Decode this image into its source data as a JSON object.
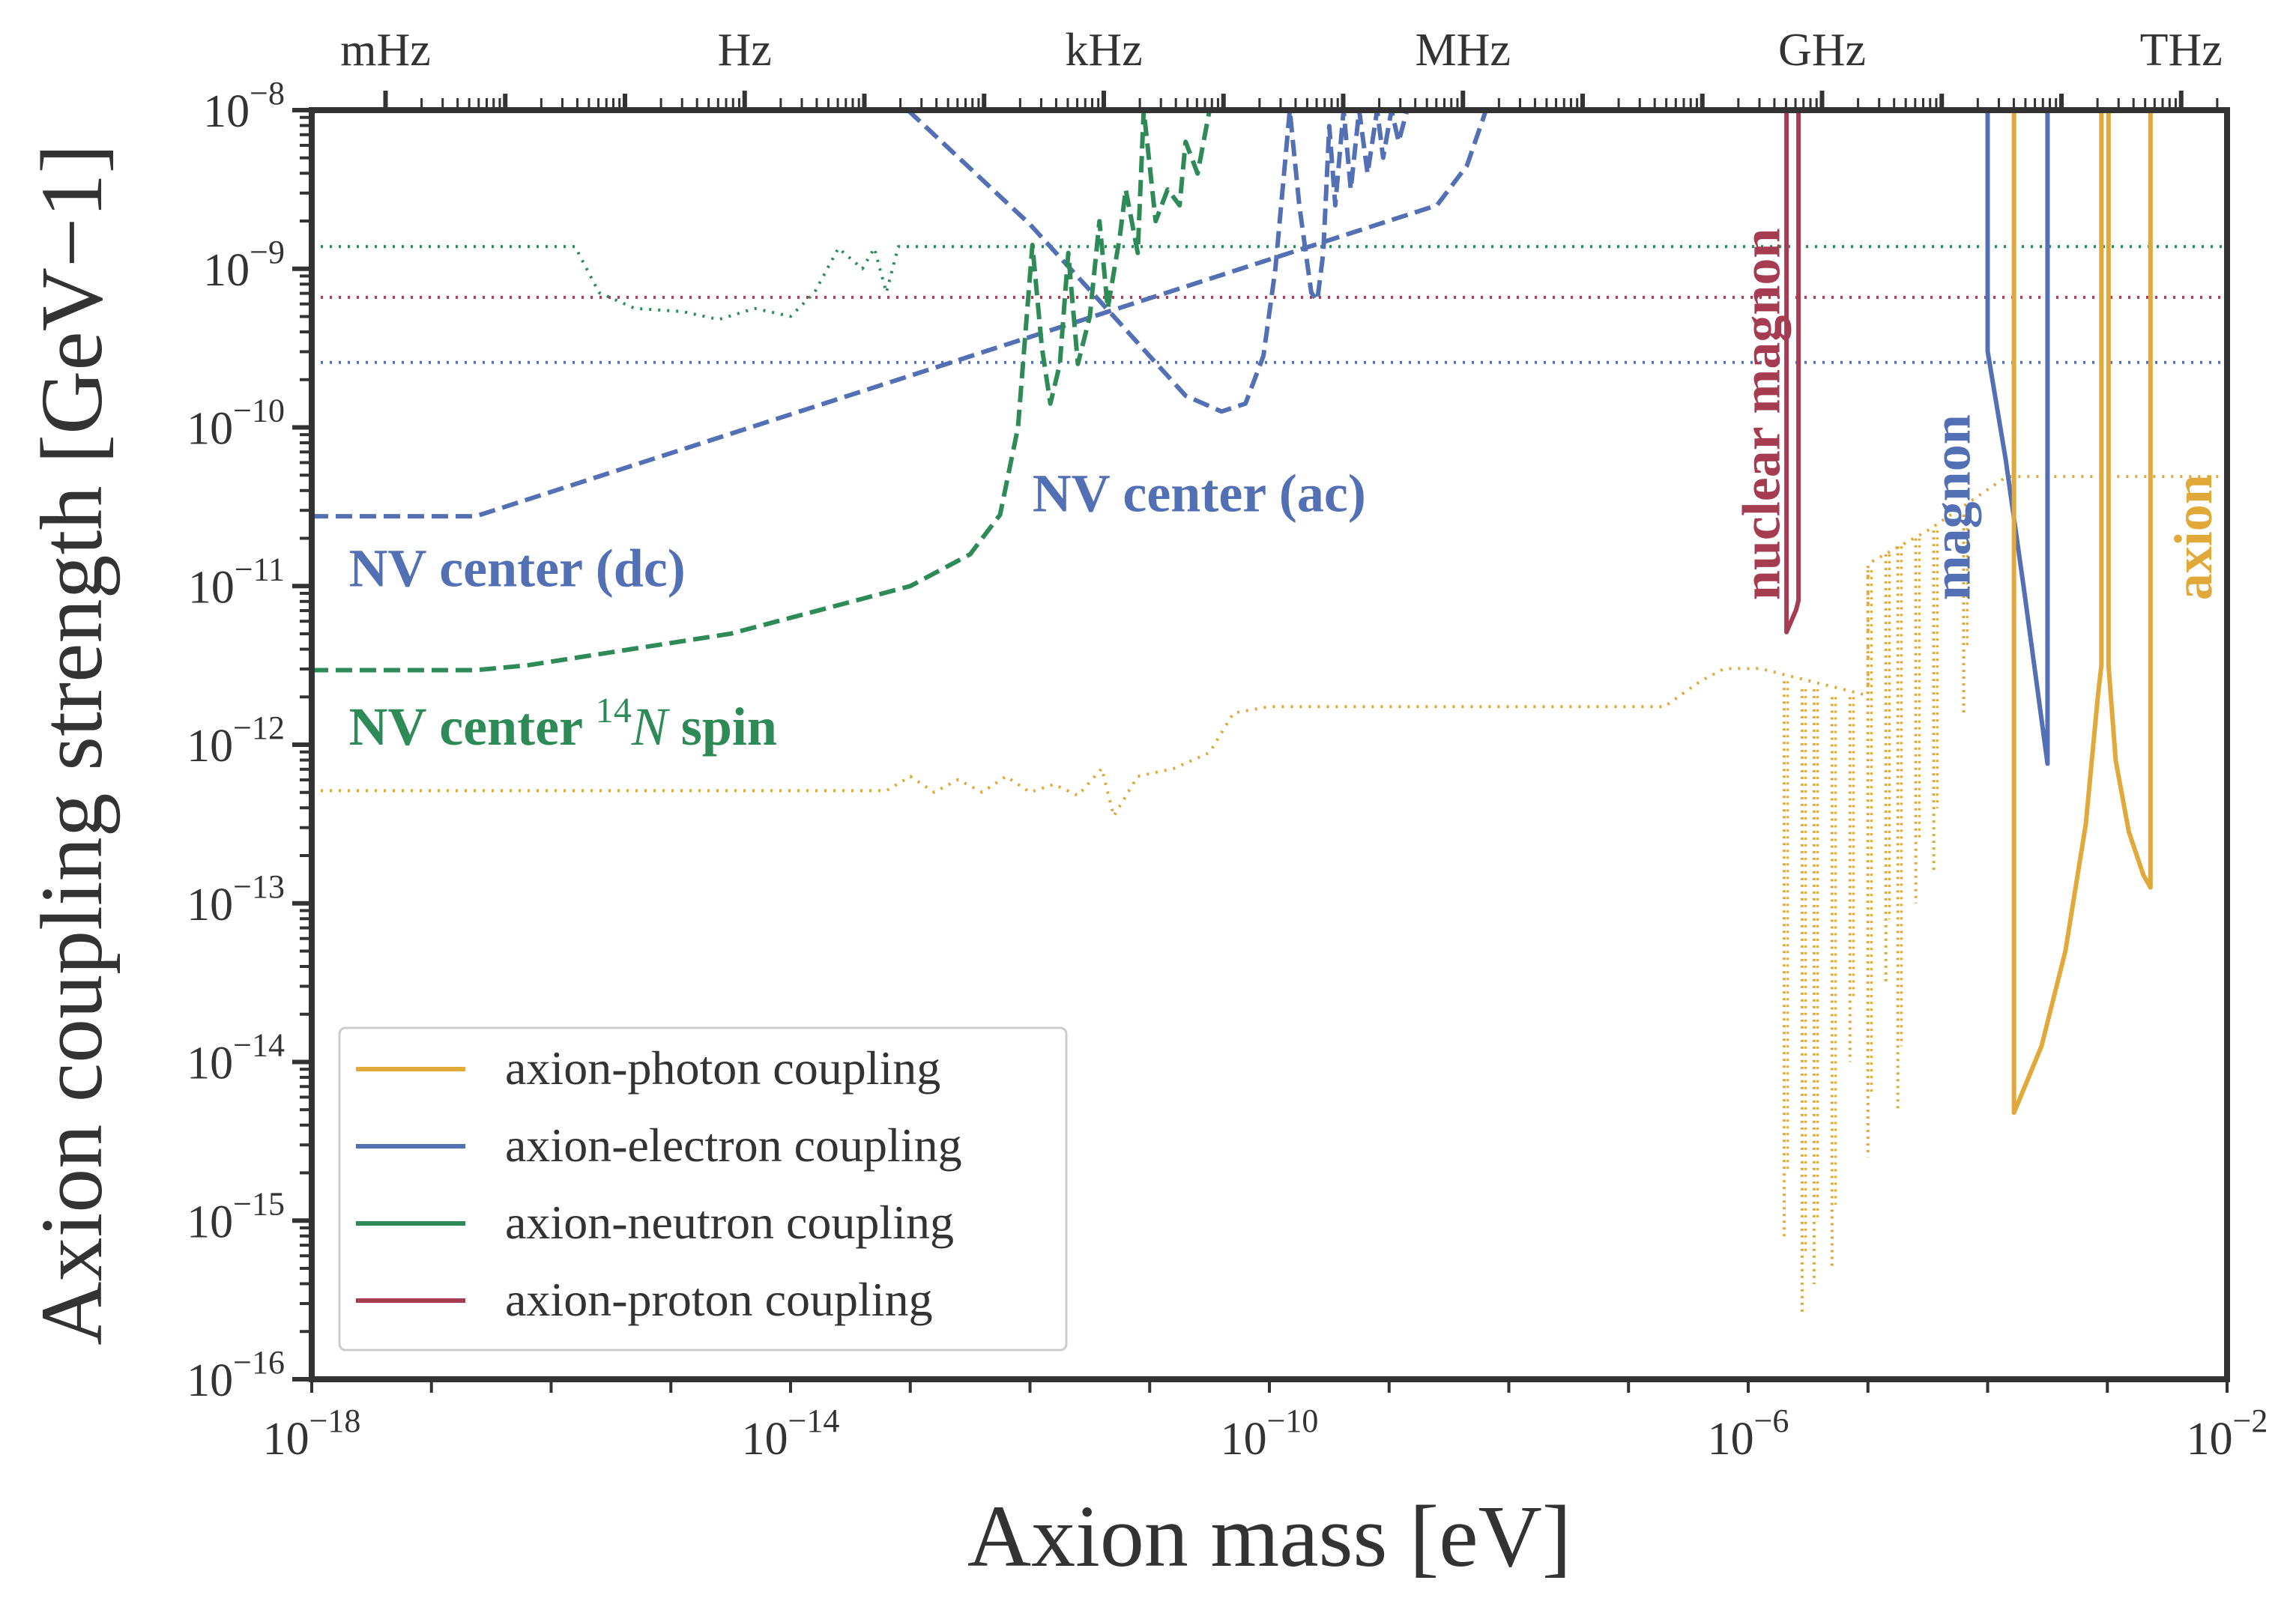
{
  "chart_data": {
    "type": "line",
    "xlabel": "Axion mass [eV]",
    "ylabel": "Axion coupling strength [GeV−1]",
    "xscale": "log",
    "yscale": "log",
    "xlim_log10": [
      -18,
      -2
    ],
    "ylim_log10": [
      -16,
      -8
    ],
    "x_tick_labels": [
      {
        "exp": -18,
        "label": "10",
        "sup": "−18"
      },
      {
        "exp": -14,
        "label": "10",
        "sup": "−14"
      },
      {
        "exp": -10,
        "label": "10",
        "sup": "−10"
      },
      {
        "exp": -6,
        "label": "10",
        "sup": "−6"
      },
      {
        "exp": -2,
        "label": "10",
        "sup": "−2"
      }
    ],
    "y_tick_labels": [
      {
        "exp": -8,
        "label": "10",
        "sup": "−8"
      },
      {
        "exp": -9,
        "label": "10",
        "sup": "−9"
      },
      {
        "exp": -10,
        "label": "10",
        "sup": "−10"
      },
      {
        "exp": -11,
        "label": "10",
        "sup": "−11"
      },
      {
        "exp": -12,
        "label": "10",
        "sup": "−12"
      },
      {
        "exp": -13,
        "label": "10",
        "sup": "−13"
      },
      {
        "exp": -14,
        "label": "10",
        "sup": "−14"
      },
      {
        "exp": -15,
        "label": "10",
        "sup": "−15"
      },
      {
        "exp": -16,
        "label": "10",
        "sup": "−16"
      }
    ],
    "top_axis": {
      "unit": "frequency",
      "labels": [
        {
          "label": "mHz",
          "hz": 0.001
        },
        {
          "label": "Hz",
          "hz": 1
        },
        {
          "label": "kHz",
          "hz": 1000
        },
        {
          "label": "MHz",
          "hz": 1000000
        },
        {
          "label": "GHz",
          "hz": 1000000000
        },
        {
          "label": "THz",
          "hz": 1000000000000
        }
      ],
      "ev_per_hz": 4.136e-15
    },
    "colors": {
      "photon": "#e0a93a",
      "electron": "#5470b5",
      "neutron": "#2e8b57",
      "proton": "#a63c51"
    },
    "legend": {
      "placement": "lower-left",
      "entries": [
        {
          "label": "axion-photon coupling",
          "color": "photon"
        },
        {
          "label": "axion-electron coupling",
          "color": "electron"
        },
        {
          "label": "axion-neutron coupling",
          "color": "neutron"
        },
        {
          "label": "axion-proton coupling",
          "color": "proton"
        }
      ]
    },
    "series": [
      {
        "name": "electron existing limit",
        "color": "electron",
        "style": "dotted",
        "points": [
          [
            -18,
            -9.59
          ],
          [
            -2,
            -9.59
          ]
        ]
      },
      {
        "name": "proton existing limit",
        "color": "proton",
        "style": "dotted",
        "points": [
          [
            -18,
            -9.18
          ],
          [
            -2,
            -9.18
          ]
        ]
      },
      {
        "name": "neutron existing limit",
        "color": "neutron",
        "style": "dotted",
        "points": [
          [
            -18,
            -8.86
          ],
          [
            -15.8,
            -8.86
          ],
          [
            -15.6,
            -9.15
          ],
          [
            -15.3,
            -9.25
          ],
          [
            -14.9,
            -9.27
          ],
          [
            -14.6,
            -9.32
          ],
          [
            -14.3,
            -9.25
          ],
          [
            -14.0,
            -9.3
          ],
          [
            -13.8,
            -9.15
          ],
          [
            -13.6,
            -8.87
          ],
          [
            -13.4,
            -9.0
          ],
          [
            -13.3,
            -8.87
          ],
          [
            -13.2,
            -9.15
          ],
          [
            -13.1,
            -8.86
          ],
          [
            -2,
            -8.86
          ]
        ]
      },
      {
        "name": "photon existing limit",
        "color": "photon",
        "style": "dotted",
        "points": [
          [
            -18,
            -12.29
          ],
          [
            -13.2,
            -12.29
          ],
          [
            -13.0,
            -12.2
          ],
          [
            -12.8,
            -12.3
          ],
          [
            -12.6,
            -12.22
          ],
          [
            -12.4,
            -12.3
          ],
          [
            -12.2,
            -12.2
          ],
          [
            -12.0,
            -12.3
          ],
          [
            -11.8,
            -12.25
          ],
          [
            -11.6,
            -12.32
          ],
          [
            -11.4,
            -12.15
          ],
          [
            -11.3,
            -12.45
          ],
          [
            -11.1,
            -12.2
          ],
          [
            -10.8,
            -12.15
          ],
          [
            -10.5,
            -12.05
          ],
          [
            -10.3,
            -11.8
          ],
          [
            -10.0,
            -11.76
          ],
          [
            -6.7,
            -11.76
          ],
          [
            -6.4,
            -11.6
          ],
          [
            -6.2,
            -11.52
          ],
          [
            -5.9,
            -11.52
          ],
          [
            -5.0,
            -11.69
          ],
          [
            -5.0,
            -10.86
          ],
          [
            -4.5,
            -10.65
          ],
          [
            -3.84,
            -10.31
          ],
          [
            -2,
            -10.31
          ]
        ],
        "spikes": [
          [
            -5.7,
            -11.6,
            -15.1
          ],
          [
            -5.55,
            -11.65,
            -15.6
          ],
          [
            -5.45,
            -11.65,
            -15.4
          ],
          [
            -5.3,
            -11.7,
            -15.3
          ],
          [
            -5.15,
            -11.7,
            -14.0
          ],
          [
            -5.0,
            -10.9,
            -14.6
          ],
          [
            -4.85,
            -10.8,
            -13.5
          ],
          [
            -4.75,
            -10.75,
            -14.3
          ],
          [
            -4.6,
            -10.7,
            -13.0
          ],
          [
            -4.45,
            -10.65,
            -12.8
          ],
          [
            -4.2,
            -10.55,
            -11.8
          ]
        ]
      },
      {
        "name": "NV center (dc)",
        "color": "electron",
        "style": "dashed",
        "points": [
          [
            -18,
            -10.56
          ],
          [
            -16.63,
            -10.56
          ],
          [
            -8.6,
            -8.6
          ],
          [
            -8.35,
            -8.35
          ],
          [
            -8.19,
            -8
          ]
        ]
      },
      {
        "name": "NV center (ac)",
        "color": "electron",
        "style": "dashed",
        "points": [
          [
            -13.02,
            -8
          ],
          [
            -12.0,
            -8.72
          ],
          [
            -11.3,
            -9.3
          ],
          [
            -10.7,
            -9.8
          ],
          [
            -10.4,
            -9.9
          ],
          [
            -10.2,
            -9.85
          ],
          [
            -10.05,
            -9.55
          ],
          [
            -9.95,
            -9.0
          ],
          [
            -9.83,
            -8
          ],
          [
            -9.75,
            -8.6
          ],
          [
            -9.65,
            -9.15
          ],
          [
            -9.6,
            -9.2
          ],
          [
            -9.55,
            -8.9
          ],
          [
            -9.5,
            -8.1
          ],
          [
            -9.45,
            -8.6
          ],
          [
            -9.38,
            -8.0
          ],
          [
            -9.32,
            -8.5
          ],
          [
            -9.25,
            -8.0
          ],
          [
            -9.18,
            -8.4
          ],
          [
            -9.1,
            -8.0
          ],
          [
            -9.05,
            -8.3
          ],
          [
            -8.98,
            -8.0
          ],
          [
            -8.92,
            -8.2
          ],
          [
            -8.85,
            -8.0
          ]
        ]
      },
      {
        "name": "NV center 14N spin",
        "color": "neutron",
        "style": "dashed",
        "points": [
          [
            -18,
            -11.53
          ],
          [
            -16.63,
            -11.53
          ],
          [
            -16.2,
            -11.5
          ],
          [
            -14.5,
            -11.3
          ],
          [
            -13.0,
            -11.0
          ],
          [
            -12.5,
            -10.8
          ],
          [
            -12.25,
            -10.55
          ],
          [
            -12.1,
            -10.0
          ],
          [
            -11.98,
            -8.85
          ],
          [
            -11.9,
            -9.5
          ],
          [
            -11.83,
            -9.85
          ],
          [
            -11.75,
            -9.6
          ],
          [
            -11.68,
            -8.9
          ],
          [
            -11.6,
            -9.6
          ],
          [
            -11.5,
            -9.3
          ],
          [
            -11.42,
            -8.7
          ],
          [
            -11.35,
            -9.25
          ],
          [
            -11.25,
            -8.8
          ],
          [
            -11.2,
            -8.5
          ],
          [
            -11.1,
            -8.9
          ],
          [
            -11.05,
            -8.0
          ],
          [
            -10.95,
            -8.7
          ],
          [
            -10.85,
            -8.5
          ],
          [
            -10.75,
            -8.6
          ],
          [
            -10.7,
            -8.2
          ],
          [
            -10.6,
            -8.4
          ],
          [
            -10.5,
            -8.0
          ]
        ]
      },
      {
        "name": "nuclear magnon",
        "color": "proton",
        "style": "solid",
        "points": [
          [
            -5.68,
            -8
          ],
          [
            -5.68,
            -11.29
          ],
          [
            -5.6,
            -11.15
          ],
          [
            -5.58,
            -11.09
          ],
          [
            -5.58,
            -8
          ]
        ]
      },
      {
        "name": "magnon",
        "color": "electron",
        "style": "solid",
        "points": [
          [
            -4.0,
            -8
          ],
          [
            -4.0,
            -9.52
          ],
          [
            -3.85,
            -10.2
          ],
          [
            -3.7,
            -11.0
          ],
          [
            -3.5,
            -12.12
          ],
          [
            -3.5,
            -8
          ]
        ]
      },
      {
        "name": "axion (a)",
        "color": "photon",
        "style": "solid",
        "points": [
          [
            -3.78,
            -8
          ],
          [
            -3.78,
            -14.32
          ],
          [
            -3.55,
            -13.9
          ],
          [
            -3.35,
            -13.3
          ],
          [
            -3.18,
            -12.5
          ],
          [
            -3.08,
            -11.7
          ],
          [
            -3.05,
            -11.5
          ],
          [
            -3.05,
            -8
          ]
        ]
      },
      {
        "name": "axion (b)",
        "color": "photon",
        "style": "solid",
        "points": [
          [
            -2.99,
            -8
          ],
          [
            -2.99,
            -11.5
          ],
          [
            -2.93,
            -12.1
          ],
          [
            -2.82,
            -12.55
          ],
          [
            -2.7,
            -12.82
          ],
          [
            -2.64,
            -12.9
          ],
          [
            -2.64,
            -8
          ]
        ]
      }
    ],
    "annotations": [
      {
        "text": "NV center (ac)",
        "color": "electron",
        "x": -11.98,
        "y": -10.53,
        "rotate": false
      },
      {
        "text": "NV center (dc)",
        "color": "electron",
        "x": -17.69,
        "y": -11.0,
        "rotate": false
      },
      {
        "text": "NV center ",
        "sup": "14",
        "italic": "N",
        "tail": " spin",
        "color": "neutron",
        "x": -17.69,
        "y": -12.0,
        "rotate": false
      },
      {
        "text": "nuclear magnon",
        "color": "proton",
        "x": -5.74,
        "y": -11.09,
        "rotate": true
      },
      {
        "text": "magnon",
        "color": "electron",
        "x": -4.15,
        "y": -11.09,
        "rotate": true
      },
      {
        "text": "axion",
        "color": "photon",
        "x": -2.13,
        "y": -11.09,
        "rotate": true
      }
    ]
  }
}
